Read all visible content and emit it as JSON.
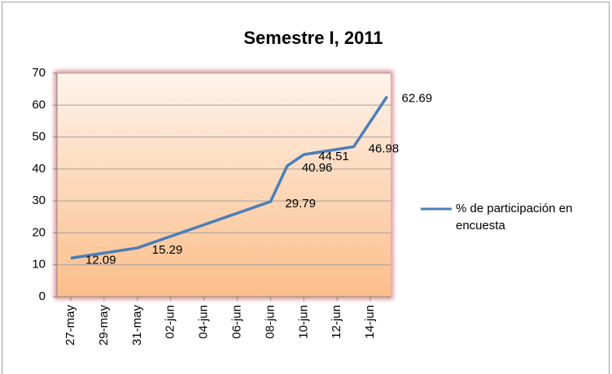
{
  "chart_data": {
    "type": "line",
    "title": "Semestre I, 2011",
    "categories": [
      "27-may",
      "29-may",
      "31-may",
      "02-jun",
      "04-jun",
      "06-jun",
      "08-jun",
      "10-jun",
      "12-jun",
      "14-jun"
    ],
    "x": [
      "27-may",
      "31-may",
      "08-jun",
      "09-jun",
      "10-jun",
      "13-jun",
      "15-jun"
    ],
    "series": [
      {
        "name": "% de participación en encuesta",
        "color": "#4a7ebb",
        "values": [
          12.09,
          15.29,
          29.79,
          40.96,
          44.51,
          46.98,
          62.69
        ]
      }
    ],
    "ylim": [
      0,
      70
    ],
    "yticks": [
      0,
      10,
      20,
      30,
      40,
      50,
      60,
      70
    ],
    "grid": true,
    "legend": "right"
  }
}
